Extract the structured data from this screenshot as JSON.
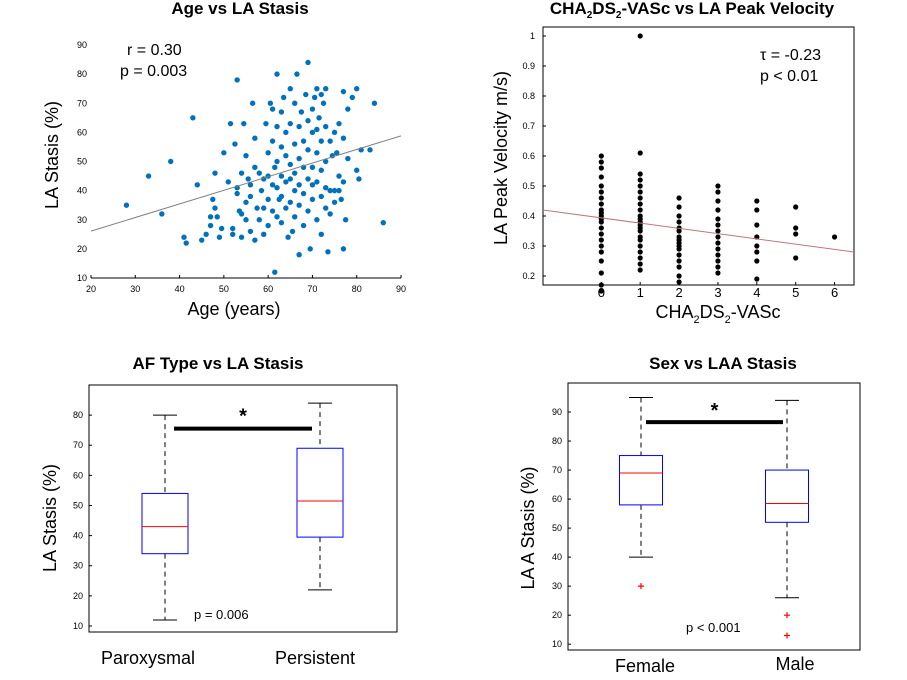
{
  "charts": [
    {
      "id": "age-vs-la-stasis",
      "type": "scatter",
      "title": "Age vs LA Stasis",
      "xlabel": "Age (years)",
      "ylabel": "LA Stasis (%)",
      "xlim": [
        20,
        90
      ],
      "ylim": [
        10,
        90
      ],
      "xticks": [
        20,
        30,
        40,
        50,
        60,
        70,
        80,
        90
      ],
      "yticks": [
        10,
        20,
        30,
        40,
        50,
        60,
        70,
        80,
        90
      ],
      "annotations": [
        "r = 0.30",
        "p = 0.003"
      ],
      "point_color": "#0072BD",
      "fit_line": {
        "x": [
          20,
          90
        ],
        "y": [
          26.1,
          58.8
        ],
        "color": "#808080"
      },
      "points": [
        [
          28,
          35
        ],
        [
          33,
          45
        ],
        [
          36,
          32
        ],
        [
          38,
          50
        ],
        [
          41,
          24
        ],
        [
          41.5,
          22
        ],
        [
          43,
          65
        ],
        [
          44,
          42
        ],
        [
          45,
          23
        ],
        [
          46,
          25
        ],
        [
          47,
          28
        ],
        [
          47,
          31
        ],
        [
          47.5,
          37
        ],
        [
          48,
          34
        ],
        [
          48,
          46
        ],
        [
          48.5,
          31
        ],
        [
          49,
          24
        ],
        [
          49.5,
          27
        ],
        [
          50,
          53
        ],
        [
          51,
          43
        ],
        [
          51.5,
          63
        ],
        [
          52,
          25
        ],
        [
          52,
          27
        ],
        [
          52.5,
          56
        ],
        [
          53,
          78
        ],
        [
          53,
          39
        ],
        [
          53,
          41
        ],
        [
          53.5,
          33
        ],
        [
          54,
          24
        ],
        [
          54,
          32
        ],
        [
          54,
          46
        ],
        [
          54.5,
          63
        ],
        [
          55,
          52
        ],
        [
          55,
          36
        ],
        [
          55,
          30
        ],
        [
          55.5,
          44
        ],
        [
          56,
          26
        ],
        [
          56,
          42
        ],
        [
          56,
          38
        ],
        [
          56.5,
          70
        ],
        [
          57,
          58
        ],
        [
          57,
          48
        ],
        [
          57,
          23
        ],
        [
          57.5,
          34
        ],
        [
          58,
          46
        ],
        [
          58,
          30
        ],
        [
          58.5,
          40
        ],
        [
          59,
          25
        ],
        [
          59,
          34
        ],
        [
          59,
          44
        ],
        [
          59.5,
          63
        ],
        [
          60,
          53
        ],
        [
          60,
          45
        ],
        [
          60,
          37
        ],
        [
          60,
          28
        ],
        [
          60.5,
          70
        ],
        [
          61,
          68
        ],
        [
          61,
          57
        ],
        [
          61,
          42
        ],
        [
          61,
          33
        ],
        [
          61.5,
          48
        ],
        [
          61.5,
          12
        ],
        [
          62,
          80
        ],
        [
          62,
          62
        ],
        [
          62,
          50
        ],
        [
          62,
          41
        ],
        [
          62,
          31
        ],
        [
          62.5,
          37
        ],
        [
          63,
          67
        ],
        [
          63,
          55
        ],
        [
          63,
          45
        ],
        [
          63,
          38
        ],
        [
          63,
          29
        ],
        [
          63.5,
          72
        ],
        [
          64,
          60
        ],
        [
          64,
          52
        ],
        [
          64,
          43
        ],
        [
          64,
          34
        ],
        [
          64.5,
          24
        ],
        [
          65,
          75
        ],
        [
          65,
          63
        ],
        [
          65,
          49
        ],
        [
          65,
          44
        ],
        [
          65,
          36
        ],
        [
          65.5,
          26
        ],
        [
          66,
          70
        ],
        [
          66,
          56
        ],
        [
          66,
          46
        ],
        [
          66,
          40
        ],
        [
          66,
          31
        ],
        [
          66.5,
          80
        ],
        [
          67,
          62
        ],
        [
          67,
          51
        ],
        [
          67,
          42
        ],
        [
          67,
          35
        ],
        [
          67,
          18
        ],
        [
          67.5,
          67
        ],
        [
          68,
          57
        ],
        [
          68,
          48
        ],
        [
          68,
          39
        ],
        [
          68,
          28
        ],
        [
          68.5,
          73
        ],
        [
          69,
          84
        ],
        [
          69,
          64
        ],
        [
          69,
          54
        ],
        [
          69,
          44
        ],
        [
          69,
          33
        ],
        [
          69.5,
          20
        ],
        [
          70,
          68
        ],
        [
          70,
          60
        ],
        [
          70,
          48
        ],
        [
          70,
          42
        ],
        [
          70,
          37
        ],
        [
          70.5,
          72
        ],
        [
          71,
          75
        ],
        [
          71,
          61
        ],
        [
          71,
          53
        ],
        [
          71,
          43
        ],
        [
          71,
          30
        ],
        [
          71.5,
          65
        ],
        [
          72,
          73
        ],
        [
          72,
          57
        ],
        [
          72,
          47
        ],
        [
          72,
          38
        ],
        [
          72,
          25
        ],
        [
          72.5,
          70
        ],
        [
          73,
          75
        ],
        [
          73,
          62
        ],
        [
          73,
          50
        ],
        [
          73,
          41
        ],
        [
          73,
          34
        ],
        [
          73.5,
          19
        ],
        [
          74,
          57
        ],
        [
          74,
          40
        ],
        [
          74,
          32
        ],
        [
          74.5,
          52
        ],
        [
          75,
          60
        ],
        [
          75,
          40
        ],
        [
          75,
          36
        ],
        [
          75.5,
          53
        ],
        [
          76,
          63
        ],
        [
          76,
          45
        ],
        [
          76,
          40
        ],
        [
          76.5,
          37
        ],
        [
          77,
          74
        ],
        [
          77,
          58
        ],
        [
          77,
          43
        ],
        [
          77,
          20
        ],
        [
          77.5,
          30
        ],
        [
          78,
          68
        ],
        [
          78,
          51
        ],
        [
          79,
          72
        ],
        [
          80,
          75
        ],
        [
          80,
          47
        ],
        [
          80.5,
          44
        ],
        [
          81,
          54
        ],
        [
          83,
          54
        ],
        [
          84,
          70
        ],
        [
          86,
          29
        ]
      ]
    },
    {
      "id": "cha2ds2-vasc-vs-la-peak-velocity",
      "type": "scatter",
      "title_parts": [
        "CHA",
        "2",
        "DS",
        "2",
        "-VASc vs LA Peak Velocity"
      ],
      "xlabel_parts": [
        "CHA",
        "2",
        "DS",
        "2",
        "-VASc"
      ],
      "ylabel": "LA Peak Velocity m/s)",
      "xlim": [
        -1.5,
        6.5
      ],
      "ylim": [
        0.17,
        1.03
      ],
      "xticks": [
        0,
        1,
        2,
        3,
        4,
        5,
        6
      ],
      "yticks": [
        0.2,
        0.3,
        0.4,
        0.5,
        0.6,
        0.7,
        0.8,
        0.9,
        1
      ],
      "annotations": [
        "τ = -0.23",
        "p < 0.01"
      ],
      "point_color": "#000000",
      "fit_line": {
        "x": [
          -1.5,
          6.5
        ],
        "y": [
          0.42,
          0.28
        ],
        "color": "#C0757F"
      },
      "points": [
        [
          0,
          0.15
        ],
        [
          0,
          0.17
        ],
        [
          0,
          0.21
        ],
        [
          0,
          0.25
        ],
        [
          0,
          0.28
        ],
        [
          0,
          0.3
        ],
        [
          0,
          0.32
        ],
        [
          0,
          0.34
        ],
        [
          0,
          0.36
        ],
        [
          0,
          0.38
        ],
        [
          0,
          0.39
        ],
        [
          0,
          0.4
        ],
        [
          0,
          0.41
        ],
        [
          0,
          0.42
        ],
        [
          0,
          0.44
        ],
        [
          0,
          0.46
        ],
        [
          0,
          0.48
        ],
        [
          0,
          0.5
        ],
        [
          0,
          0.53
        ],
        [
          0,
          0.56
        ],
        [
          0,
          0.58
        ],
        [
          0,
          0.6
        ],
        [
          1,
          0.22
        ],
        [
          1,
          0.24
        ],
        [
          1,
          0.26
        ],
        [
          1,
          0.28
        ],
        [
          1,
          0.3
        ],
        [
          1,
          0.32
        ],
        [
          1,
          0.33
        ],
        [
          1,
          0.35
        ],
        [
          1,
          0.36
        ],
        [
          1,
          0.37
        ],
        [
          1,
          0.38
        ],
        [
          1,
          0.39
        ],
        [
          1,
          0.4
        ],
        [
          1,
          0.42
        ],
        [
          1,
          0.44
        ],
        [
          1,
          0.46
        ],
        [
          1,
          0.48
        ],
        [
          1,
          0.5
        ],
        [
          1,
          0.52
        ],
        [
          1,
          0.54
        ],
        [
          1,
          0.61
        ],
        [
          1,
          1.0
        ],
        [
          2,
          0.18
        ],
        [
          2,
          0.2
        ],
        [
          2,
          0.23
        ],
        [
          2,
          0.25
        ],
        [
          2,
          0.27
        ],
        [
          2,
          0.29
        ],
        [
          2,
          0.3
        ],
        [
          2,
          0.31
        ],
        [
          2,
          0.32
        ],
        [
          2,
          0.33
        ],
        [
          2,
          0.35
        ],
        [
          2,
          0.36
        ],
        [
          2,
          0.38
        ],
        [
          2,
          0.4
        ],
        [
          2,
          0.43
        ],
        [
          2,
          0.46
        ],
        [
          3,
          0.21
        ],
        [
          3,
          0.23
        ],
        [
          3,
          0.25
        ],
        [
          3,
          0.27
        ],
        [
          3,
          0.29
        ],
        [
          3,
          0.31
        ],
        [
          3,
          0.33
        ],
        [
          3,
          0.35
        ],
        [
          3,
          0.37
        ],
        [
          3,
          0.39
        ],
        [
          3,
          0.42
        ],
        [
          3,
          0.45
        ],
        [
          3,
          0.48
        ],
        [
          3,
          0.5
        ],
        [
          4,
          0.19
        ],
        [
          4,
          0.25
        ],
        [
          4,
          0.28
        ],
        [
          4,
          0.3
        ],
        [
          4,
          0.33
        ],
        [
          4,
          0.37
        ],
        [
          4,
          0.42
        ],
        [
          4,
          0.45
        ],
        [
          5,
          0.26
        ],
        [
          5,
          0.34
        ],
        [
          5,
          0.36
        ],
        [
          5,
          0.43
        ],
        [
          6,
          0.33
        ]
      ]
    },
    {
      "id": "af-type-vs-la-stasis",
      "type": "box",
      "title": "AF Type vs LA Stasis",
      "ylabel": "LA Stasis (%)",
      "ylim": [
        8,
        90
      ],
      "yticks": [
        10,
        20,
        30,
        40,
        50,
        60,
        70,
        80
      ],
      "annotation": "p = 0.006",
      "significance": "*",
      "categories": [
        "Paroxysmal",
        "Persistent"
      ],
      "boxes": [
        {
          "whisker_low": 12,
          "q1": 34,
          "median": 43,
          "q3": 54,
          "whisker_high": 80,
          "outliers": []
        },
        {
          "whisker_low": 22,
          "q1": 39.5,
          "median": 51.5,
          "q3": 69,
          "whisker_high": 84,
          "outliers": []
        }
      ],
      "sig_bar_y": 75.5
    },
    {
      "id": "sex-vs-laa-stasis",
      "type": "box",
      "title": "Sex vs LAA Stasis",
      "ylabel": "LA A Stasis (%)",
      "ylim": [
        8,
        100
      ],
      "yticks": [
        10,
        20,
        30,
        40,
        50,
        60,
        70,
        80,
        90
      ],
      "annotation": "p < 0.001",
      "significance": "*",
      "categories": [
        "Female",
        "Male"
      ],
      "boxes": [
        {
          "whisker_low": 40,
          "q1": 58,
          "median": 69,
          "q3": 75,
          "whisker_high": 95,
          "outliers": [
            30
          ]
        },
        {
          "whisker_low": 26,
          "q1": 52,
          "median": 58.5,
          "q3": 70,
          "whisker_high": 94,
          "outliers": [
            20,
            13
          ]
        }
      ],
      "sig_bar_y": 86.5
    }
  ]
}
